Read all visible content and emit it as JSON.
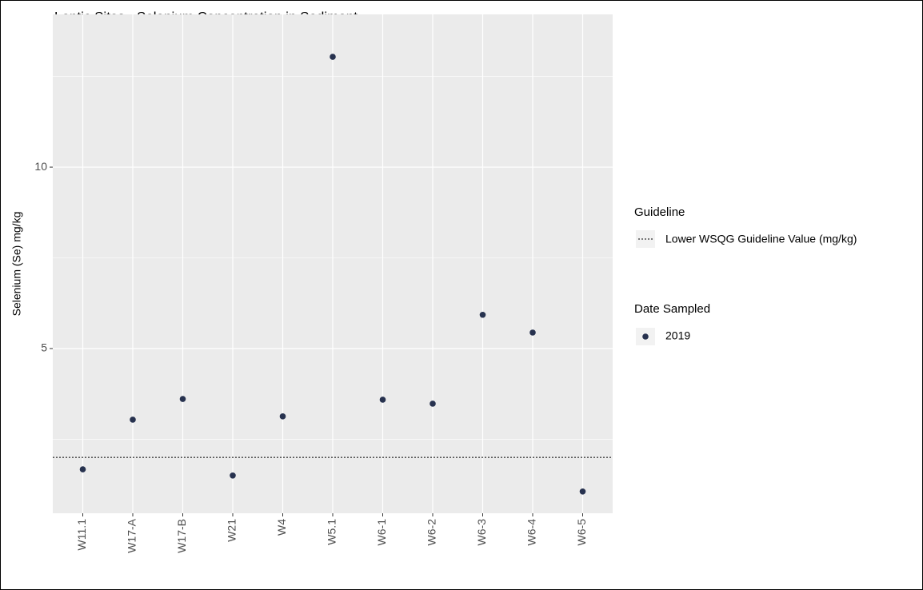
{
  "chart_data": {
    "type": "scatter",
    "title": "Lentic Sites - Selenium Concentration in Sediment",
    "y_label": "Selenium (Se)  mg/kg",
    "categories": [
      "W11.1",
      "W17-A",
      "W17-B",
      "W21",
      "W4",
      "W5.1",
      "W6-1",
      "W6-2",
      "W6-3",
      "W6-4",
      "W6-5"
    ],
    "series": [
      {
        "name": "2019",
        "color": "#27324f",
        "values": [
          1.67,
          3.04,
          3.61,
          1.5,
          3.13,
          13.04,
          3.59,
          3.48,
          5.93,
          5.44,
          1.06
        ]
      }
    ],
    "legend_title": "Date Sampled",
    "guideline": {
      "legend_title": "Guideline",
      "name": "Lower WSQG Guideline Value (mg/kg)",
      "value": 2.0,
      "color": "#000000"
    },
    "ylim": [
      0.46,
      14.21
    ],
    "yticks": [
      5,
      10
    ],
    "minor_yticks": [
      2.5,
      7.5,
      12.5
    ],
    "grid": true,
    "legend_position": "right"
  }
}
